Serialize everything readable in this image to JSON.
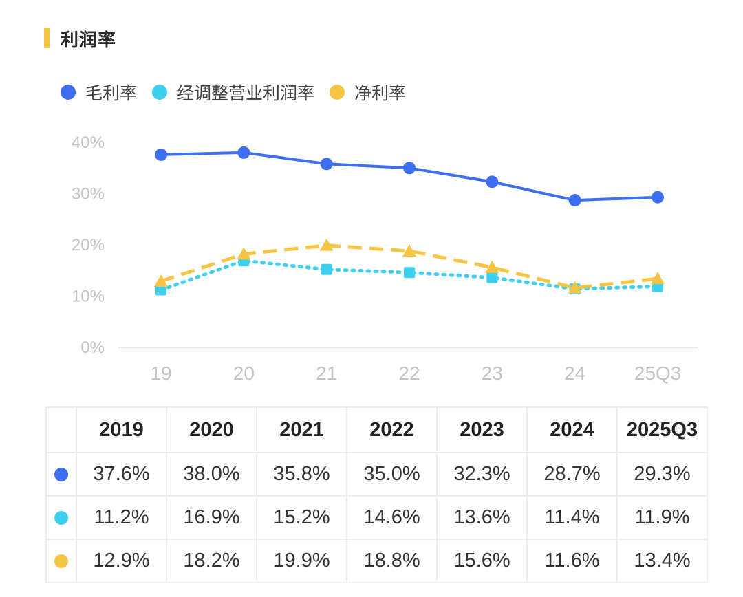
{
  "title": "利润率",
  "colors": {
    "accent_bar": "#f6c544",
    "gross": "#3e6ff0",
    "adj": "#3fd0f0",
    "net": "#f6c544"
  },
  "legend": [
    {
      "label": "毛利率",
      "color": "#3e6ff0"
    },
    {
      "label": "经调整营业利润率",
      "color": "#3fd0f0"
    },
    {
      "label": "净利率",
      "color": "#f6c544"
    }
  ],
  "chart_data": {
    "type": "line",
    "title": "利润率",
    "categories": [
      "19",
      "20",
      "21",
      "22",
      "23",
      "24",
      "25Q3"
    ],
    "y_ticks": [
      "0%",
      "10%",
      "20%",
      "30%",
      "40%"
    ],
    "ylim": [
      0,
      40
    ],
    "series": [
      {
        "name": "毛利率",
        "color": "#3e6ff0",
        "marker": "circle",
        "line": "solid",
        "values": [
          37.6,
          38.0,
          35.8,
          35.0,
          32.3,
          28.7,
          29.3
        ]
      },
      {
        "name": "经调整营业利润率",
        "color": "#3fd0f0",
        "marker": "square",
        "line": "dotted",
        "values": [
          11.2,
          16.9,
          15.2,
          14.6,
          13.6,
          11.4,
          11.9
        ]
      },
      {
        "name": "净利率",
        "color": "#f6c544",
        "marker": "triangle",
        "line": "dashed",
        "values": [
          12.9,
          18.2,
          19.9,
          18.8,
          15.6,
          11.6,
          13.4
        ]
      }
    ]
  },
  "table": {
    "headers": [
      "2019",
      "2020",
      "2021",
      "2022",
      "2023",
      "2024",
      "2025Q3"
    ],
    "rows": [
      {
        "color": "#3e6ff0",
        "cells": [
          "37.6%",
          "38.0%",
          "35.8%",
          "35.0%",
          "32.3%",
          "28.7%",
          "29.3%"
        ]
      },
      {
        "color": "#3fd0f0",
        "cells": [
          "11.2%",
          "16.9%",
          "15.2%",
          "14.6%",
          "13.6%",
          "11.4%",
          "11.9%"
        ]
      },
      {
        "color": "#f6c544",
        "cells": [
          "12.9%",
          "18.2%",
          "19.9%",
          "18.8%",
          "15.6%",
          "11.6%",
          "13.4%"
        ]
      }
    ]
  }
}
